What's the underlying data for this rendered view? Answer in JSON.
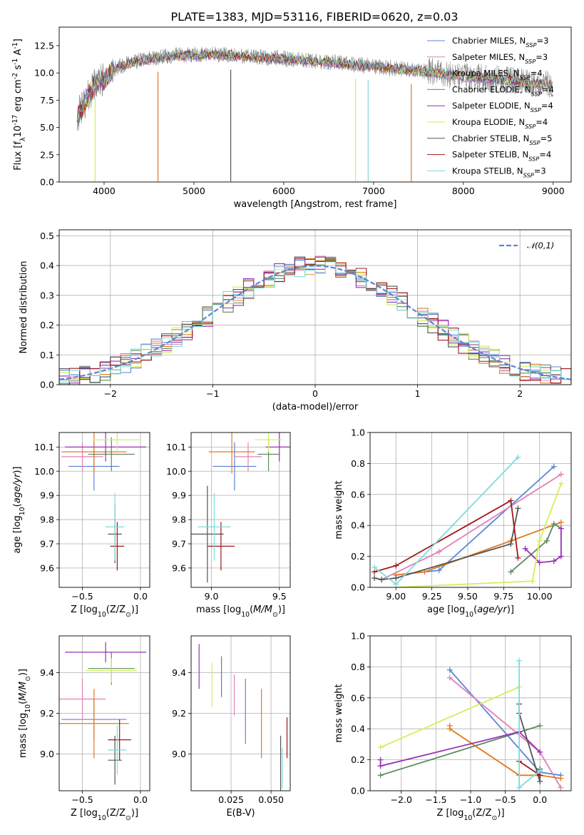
{
  "title": "PLATE=1383, MJD=53116, FIBERID=0620, z=0.03",
  "colors": {
    "Chabrier MILES": "#5b86d6",
    "Salpeter MILES": "#e080b8",
    "Kroupa MILES": "#e07b22",
    "Chabrier ELODIE": "#5c8a5c",
    "Salpeter ELODIE": "#9a2fb8",
    "Kroupa ELODIE": "#d4ee5a",
    "Chabrier STELIB": "#555555",
    "Salpeter STELIB": "#a01818",
    "Kroupa STELIB": "#7ddcdc",
    "data": "#888888",
    "normal": "#5b86d6"
  },
  "models": [
    "Chabrier MILES",
    "Salpeter MILES",
    "Kroupa MILES",
    "Chabrier ELODIE",
    "Salpeter ELODIE",
    "Kroupa ELODIE",
    "Chabrier STELIB",
    "Salpeter STELIB",
    "Kroupa STELIB"
  ],
  "chart_data": [
    {
      "type": "line",
      "xlabel": "wavelength [Angstrom, rest frame]",
      "ylabel": "Flux [f$_\\lambda$10$^{-17}$ erg cm$^{-2}$ s$^{-1}$ A$^{-1}$]",
      "xlim": [
        3500,
        9200
      ],
      "ylim": [
        0,
        14.2
      ],
      "xticks": [
        4000,
        5000,
        6000,
        7000,
        8000,
        9000
      ],
      "yticks": [
        0.0,
        2.5,
        5.0,
        7.5,
        10.0,
        12.5
      ],
      "legend_position": "top-right",
      "legend": [
        {
          "series": "Chabrier MILES",
          "nssp": "3"
        },
        {
          "series": "Salpeter MILES",
          "nssp": "3"
        },
        {
          "series": "Kroupa MILES",
          "nssp": "4"
        },
        {
          "series": "Chabrier ELODIE",
          "nssp": "4"
        },
        {
          "series": "Salpeter ELODIE",
          "nssp": "4"
        },
        {
          "series": "Kroupa ELODIE",
          "nssp": "4"
        },
        {
          "series": "Chabrier STELIB",
          "nssp": "5"
        },
        {
          "series": "Salpeter STELIB",
          "nssp": "4"
        },
        {
          "series": "Kroupa STELIB",
          "nssp": "3"
        }
      ],
      "continuum": {
        "x": [
          3700,
          3800,
          3900,
          4000,
          4100,
          4300,
          4500,
          4800,
          5200,
          5600,
          6000,
          6500,
          7000,
          7400,
          7700,
          8000,
          8400,
          8700,
          9000
        ],
        "y": [
          6.0,
          7.5,
          9.0,
          9.4,
          10.3,
          11.0,
          11.3,
          11.6,
          11.7,
          11.5,
          11.3,
          11.0,
          10.6,
          10.3,
          10.0,
          9.7,
          9.4,
          9.1,
          8.9
        ]
      },
      "absorption_features": [
        {
          "x": 3900,
          "series": "Kroupa ELODIE"
        },
        {
          "x": 4600,
          "series": "Kroupa MILES"
        },
        {
          "x": 5410,
          "series": "Chabrier STELIB"
        },
        {
          "x": 6800,
          "series": "Kroupa ELODIE"
        },
        {
          "x": 6940,
          "series": "Kroupa STELIB"
        },
        {
          "x": 7420,
          "series": "Kroupa MILES"
        }
      ]
    },
    {
      "type": "histogram",
      "xlabel": "(data-model)/error",
      "ylabel": "Normed distribution",
      "xlim": [
        -2.5,
        2.5
      ],
      "ylim": [
        0,
        0.52
      ],
      "xticks": [
        -2,
        -1,
        0,
        1,
        2
      ],
      "yticks": [
        0.0,
        0.1,
        0.2,
        0.3,
        0.4,
        0.5
      ],
      "bin_width": 0.1,
      "legend_label": "$\\mathcal{N}(0,1)$",
      "legend_position": "top-right"
    },
    {
      "type": "scatter",
      "xlabel": "Z [log$_{10}$(Z/Z$_\\odot$)]",
      "ylabel": "age  [log$_{10}$($age/yr$)]",
      "xlim": [
        -0.7,
        0.08
      ],
      "ylim": [
        9.52,
        10.16
      ],
      "xticks": [
        -0.5,
        0.0
      ],
      "yticks": [
        9.6,
        9.7,
        9.8,
        9.9,
        10.0,
        10.1
      ],
      "points": [
        {
          "series": "Chabrier MILES",
          "x": -0.4,
          "y": 10.02,
          "xerr": 0.22,
          "yerr": 0.1
        },
        {
          "series": "Salpeter MILES",
          "x": -0.5,
          "y": 10.06,
          "xerr": 0.18,
          "yerr": 0.06
        },
        {
          "series": "Kroupa MILES",
          "x": -0.4,
          "y": 10.08,
          "xerr": 0.28,
          "yerr": 0.09
        },
        {
          "series": "Chabrier ELODIE",
          "x": -0.25,
          "y": 10.07,
          "xerr": 0.2,
          "yerr": 0.07
        },
        {
          "series": "Salpeter ELODIE",
          "x": -0.3,
          "y": 10.1,
          "xerr": 0.35,
          "yerr": 0.06
        },
        {
          "series": "Kroupa ELODIE",
          "x": -0.2,
          "y": 10.13,
          "xerr": 0.2,
          "yerr": 0.05
        },
        {
          "series": "Chabrier STELIB",
          "x": -0.22,
          "y": 9.74,
          "xerr": 0.06,
          "yerr": 0.12
        },
        {
          "series": "Salpeter STELIB",
          "x": -0.2,
          "y": 9.69,
          "xerr": 0.06,
          "yerr": 0.1
        },
        {
          "series": "Kroupa STELIB",
          "x": -0.22,
          "y": 9.77,
          "xerr": 0.08,
          "yerr": 0.14
        }
      ]
    },
    {
      "type": "scatter",
      "xlabel": "mass [log$_{10}$($M/M_\\odot$)]",
      "ylabel": "",
      "xlim": [
        8.85,
        9.58
      ],
      "ylim": [
        9.52,
        10.16
      ],
      "xticks": [
        9.0,
        9.5
      ],
      "yticks": [
        9.6,
        9.7,
        9.8,
        9.9,
        10.0,
        10.1
      ],
      "points": [
        {
          "series": "Chabrier MILES",
          "x": 9.17,
          "y": 10.02,
          "xerr": 0.16,
          "yerr": 0.1
        },
        {
          "series": "Salpeter MILES",
          "x": 9.27,
          "y": 10.06,
          "xerr": 0.1,
          "yerr": 0.06
        },
        {
          "series": "Kroupa MILES",
          "x": 9.15,
          "y": 10.08,
          "xerr": 0.17,
          "yerr": 0.09
        },
        {
          "series": "Chabrier ELODIE",
          "x": 9.42,
          "y": 10.07,
          "xerr": 0.08,
          "yerr": 0.07
        },
        {
          "series": "Salpeter ELODIE",
          "x": 9.5,
          "y": 10.1,
          "xerr": 0.1,
          "yerr": 0.06
        },
        {
          "series": "Kroupa ELODIE",
          "x": 9.42,
          "y": 10.13,
          "xerr": 0.1,
          "yerr": 0.05
        },
        {
          "series": "Chabrier STELIB",
          "x": 8.97,
          "y": 9.74,
          "xerr": 0.12,
          "yerr": 0.2
        },
        {
          "series": "Salpeter STELIB",
          "x": 9.07,
          "y": 9.69,
          "xerr": 0.1,
          "yerr": 0.1
        },
        {
          "series": "Kroupa STELIB",
          "x": 9.02,
          "y": 9.77,
          "xerr": 0.12,
          "yerr": 0.14
        }
      ]
    },
    {
      "type": "line",
      "xlabel": "age  [log$_{10}$($age/yr$)]",
      "ylabel": "mass weight",
      "xlim": [
        8.82,
        10.22
      ],
      "ylim": [
        0,
        1.0
      ],
      "xticks": [
        9.0,
        9.25,
        9.5,
        9.75,
        10.0
      ],
      "yticks": [
        0.0,
        0.2,
        0.4,
        0.6,
        0.8,
        1.0
      ],
      "series": [
        {
          "name": "Chabrier MILES",
          "points": [
            [
              9.0,
              0.08
            ],
            [
              9.3,
              0.11
            ],
            [
              10.1,
              0.78
            ]
          ]
        },
        {
          "name": "Salpeter MILES",
          "points": [
            [
              8.9,
              0.05
            ],
            [
              9.3,
              0.23
            ],
            [
              10.15,
              0.73
            ]
          ]
        },
        {
          "name": "Kroupa MILES",
          "points": [
            [
              9.0,
              0.08
            ],
            [
              9.2,
              0.1
            ],
            [
              9.8,
              0.3
            ],
            [
              10.15,
              0.42
            ]
          ]
        },
        {
          "name": "Chabrier ELODIE",
          "points": [
            [
              9.8,
              0.1
            ],
            [
              10.05,
              0.3
            ],
            [
              10.1,
              0.41
            ],
            [
              10.15,
              0.38
            ]
          ]
        },
        {
          "name": "Salpeter ELODIE",
          "points": [
            [
              9.9,
              0.25
            ],
            [
              10.0,
              0.16
            ],
            [
              10.1,
              0.17
            ],
            [
              10.15,
              0.2
            ],
            [
              10.15,
              0.38
            ]
          ]
        },
        {
          "name": "Kroupa ELODIE",
          "points": [
            [
              9.0,
              0.0
            ],
            [
              9.95,
              0.04
            ],
            [
              10.0,
              0.3
            ],
            [
              10.15,
              0.67
            ]
          ]
        },
        {
          "name": "Chabrier STELIB",
          "points": [
            [
              8.85,
              0.06
            ],
            [
              8.9,
              0.05
            ],
            [
              9.0,
              0.06
            ],
            [
              9.8,
              0.28
            ],
            [
              9.85,
              0.51
            ]
          ]
        },
        {
          "name": "Salpeter STELIB",
          "points": [
            [
              8.85,
              0.1
            ],
            [
              9.0,
              0.14
            ],
            [
              9.8,
              0.56
            ],
            [
              9.85,
              0.19
            ]
          ]
        },
        {
          "name": "Kroupa STELIB",
          "points": [
            [
              8.85,
              0.13
            ],
            [
              9.0,
              0.02
            ],
            [
              9.85,
              0.84
            ]
          ]
        }
      ]
    },
    {
      "type": "scatter",
      "xlabel": "Z [log$_{10}$(Z/Z$_\\odot$)]",
      "ylabel": "mass [log$_{10}$($M/M_\\odot$)]",
      "xlim": [
        -0.7,
        0.08
      ],
      "ylim": [
        8.82,
        9.58
      ],
      "xticks": [
        -0.5,
        0.0
      ],
      "yticks": [
        9.0,
        9.2,
        9.4
      ],
      "points": [
        {
          "series": "Chabrier MILES",
          "x": -0.4,
          "y": 9.17,
          "xerr": 0.28,
          "yerr": 0.1
        },
        {
          "series": "Salpeter MILES",
          "x": -0.5,
          "y": 9.27,
          "xerr": 0.2,
          "yerr": 0.1
        },
        {
          "series": "Kroupa MILES",
          "x": -0.4,
          "y": 9.15,
          "xerr": 0.3,
          "yerr": 0.17
        },
        {
          "series": "Chabrier ELODIE",
          "x": -0.25,
          "y": 9.42,
          "xerr": 0.2,
          "yerr": 0.08
        },
        {
          "series": "Salpeter ELODIE",
          "x": -0.3,
          "y": 9.5,
          "xerr": 0.35,
          "yerr": 0.05
        },
        {
          "series": "Kroupa ELODIE",
          "x": -0.25,
          "y": 9.41,
          "xerr": 0.22,
          "yerr": 0.06
        },
        {
          "series": "Chabrier STELIB",
          "x": -0.22,
          "y": 8.97,
          "xerr": 0.06,
          "yerr": 0.12
        },
        {
          "series": "Salpeter STELIB",
          "x": -0.18,
          "y": 9.07,
          "xerr": 0.1,
          "yerr": 0.1
        },
        {
          "series": "Kroupa STELIB",
          "x": -0.2,
          "y": 9.02,
          "xerr": 0.08,
          "yerr": 0.12
        }
      ]
    },
    {
      "type": "errorbar",
      "xlabel": "E(B-V)",
      "ylabel": "",
      "xlim": [
        0.0,
        0.062
      ],
      "ylim": [
        8.82,
        9.58
      ],
      "xticks": [
        0.025,
        0.05
      ],
      "yticks": [
        9.0,
        9.2,
        9.4
      ],
      "points": [
        {
          "series": "Salpeter ELODIE",
          "x": 0.005,
          "y": 9.43,
          "yerr": 0.11
        },
        {
          "series": "Kroupa ELODIE",
          "x": 0.013,
          "y": 9.34,
          "yerr": 0.11
        },
        {
          "series": "Chabrier ELODIE",
          "x": 0.019,
          "y": 9.38,
          "yerr": 0.1
        },
        {
          "series": "Salpeter MILES",
          "x": 0.027,
          "y": 9.29,
          "yerr": 0.1
        },
        {
          "series": "Chabrier MILES",
          "x": 0.034,
          "y": 9.21,
          "yerr": 0.16
        },
        {
          "series": "Kroupa MILES",
          "x": 0.044,
          "y": 9.15,
          "yerr": 0.17
        },
        {
          "series": "Chabrier STELIB",
          "x": 0.056,
          "y": 8.95,
          "yerr": 0.14
        },
        {
          "series": "Kroupa STELIB",
          "x": 0.057,
          "y": 8.93,
          "yerr": 0.1
        },
        {
          "series": "Salpeter STELIB",
          "x": 0.06,
          "y": 9.08,
          "yerr": 0.1
        }
      ]
    },
    {
      "type": "line",
      "xlabel": "Z [log$_{10}$(Z/Z$_\\odot$)]",
      "ylabel": "mass weight",
      "xlim": [
        -2.45,
        0.45
      ],
      "ylim": [
        0,
        1.0
      ],
      "xticks": [
        -2.0,
        -1.5,
        -1.0,
        -0.5,
        0.0
      ],
      "yticks": [
        0.0,
        0.2,
        0.4,
        0.6,
        0.8,
        1.0
      ],
      "series": [
        {
          "name": "Chabrier MILES",
          "points": [
            [
              -1.3,
              0.78
            ],
            [
              0.0,
              0.12
            ],
            [
              0.3,
              0.1
            ]
          ]
        },
        {
          "name": "Salpeter MILES",
          "points": [
            [
              -1.3,
              0.73
            ],
            [
              0.0,
              0.25
            ],
            [
              0.3,
              0.02
            ]
          ]
        },
        {
          "name": "Kroupa MILES",
          "points": [
            [
              -1.3,
              0.42
            ],
            [
              -1.3,
              0.4
            ],
            [
              -0.3,
              0.1
            ],
            [
              0.0,
              0.1
            ],
            [
              0.3,
              0.08
            ]
          ]
        },
        {
          "name": "Chabrier ELODIE",
          "points": [
            [
              -2.3,
              0.1
            ],
            [
              0.0,
              0.42
            ]
          ]
        },
        {
          "name": "Salpeter ELODIE",
          "points": [
            [
              -2.3,
              0.2
            ],
            [
              -2.3,
              0.16
            ],
            [
              -0.3,
              0.38
            ],
            [
              0.0,
              0.25
            ]
          ]
        },
        {
          "name": "Kroupa ELODIE",
          "points": [
            [
              -2.3,
              0.28
            ],
            [
              -0.3,
              0.67
            ]
          ]
        },
        {
          "name": "Chabrier STELIB",
          "points": [
            [
              -0.3,
              0.56
            ],
            [
              -0.3,
              0.5
            ],
            [
              0.0,
              0.06
            ],
            [
              0.0,
              0.14
            ]
          ]
        },
        {
          "name": "Salpeter STELIB",
          "points": [
            [
              -0.3,
              0.19
            ],
            [
              0.0,
              0.1
            ]
          ]
        },
        {
          "name": "Kroupa STELIB",
          "points": [
            [
              -0.3,
              0.84
            ],
            [
              -0.3,
              0.02
            ],
            [
              0.0,
              0.13
            ]
          ]
        }
      ]
    }
  ]
}
